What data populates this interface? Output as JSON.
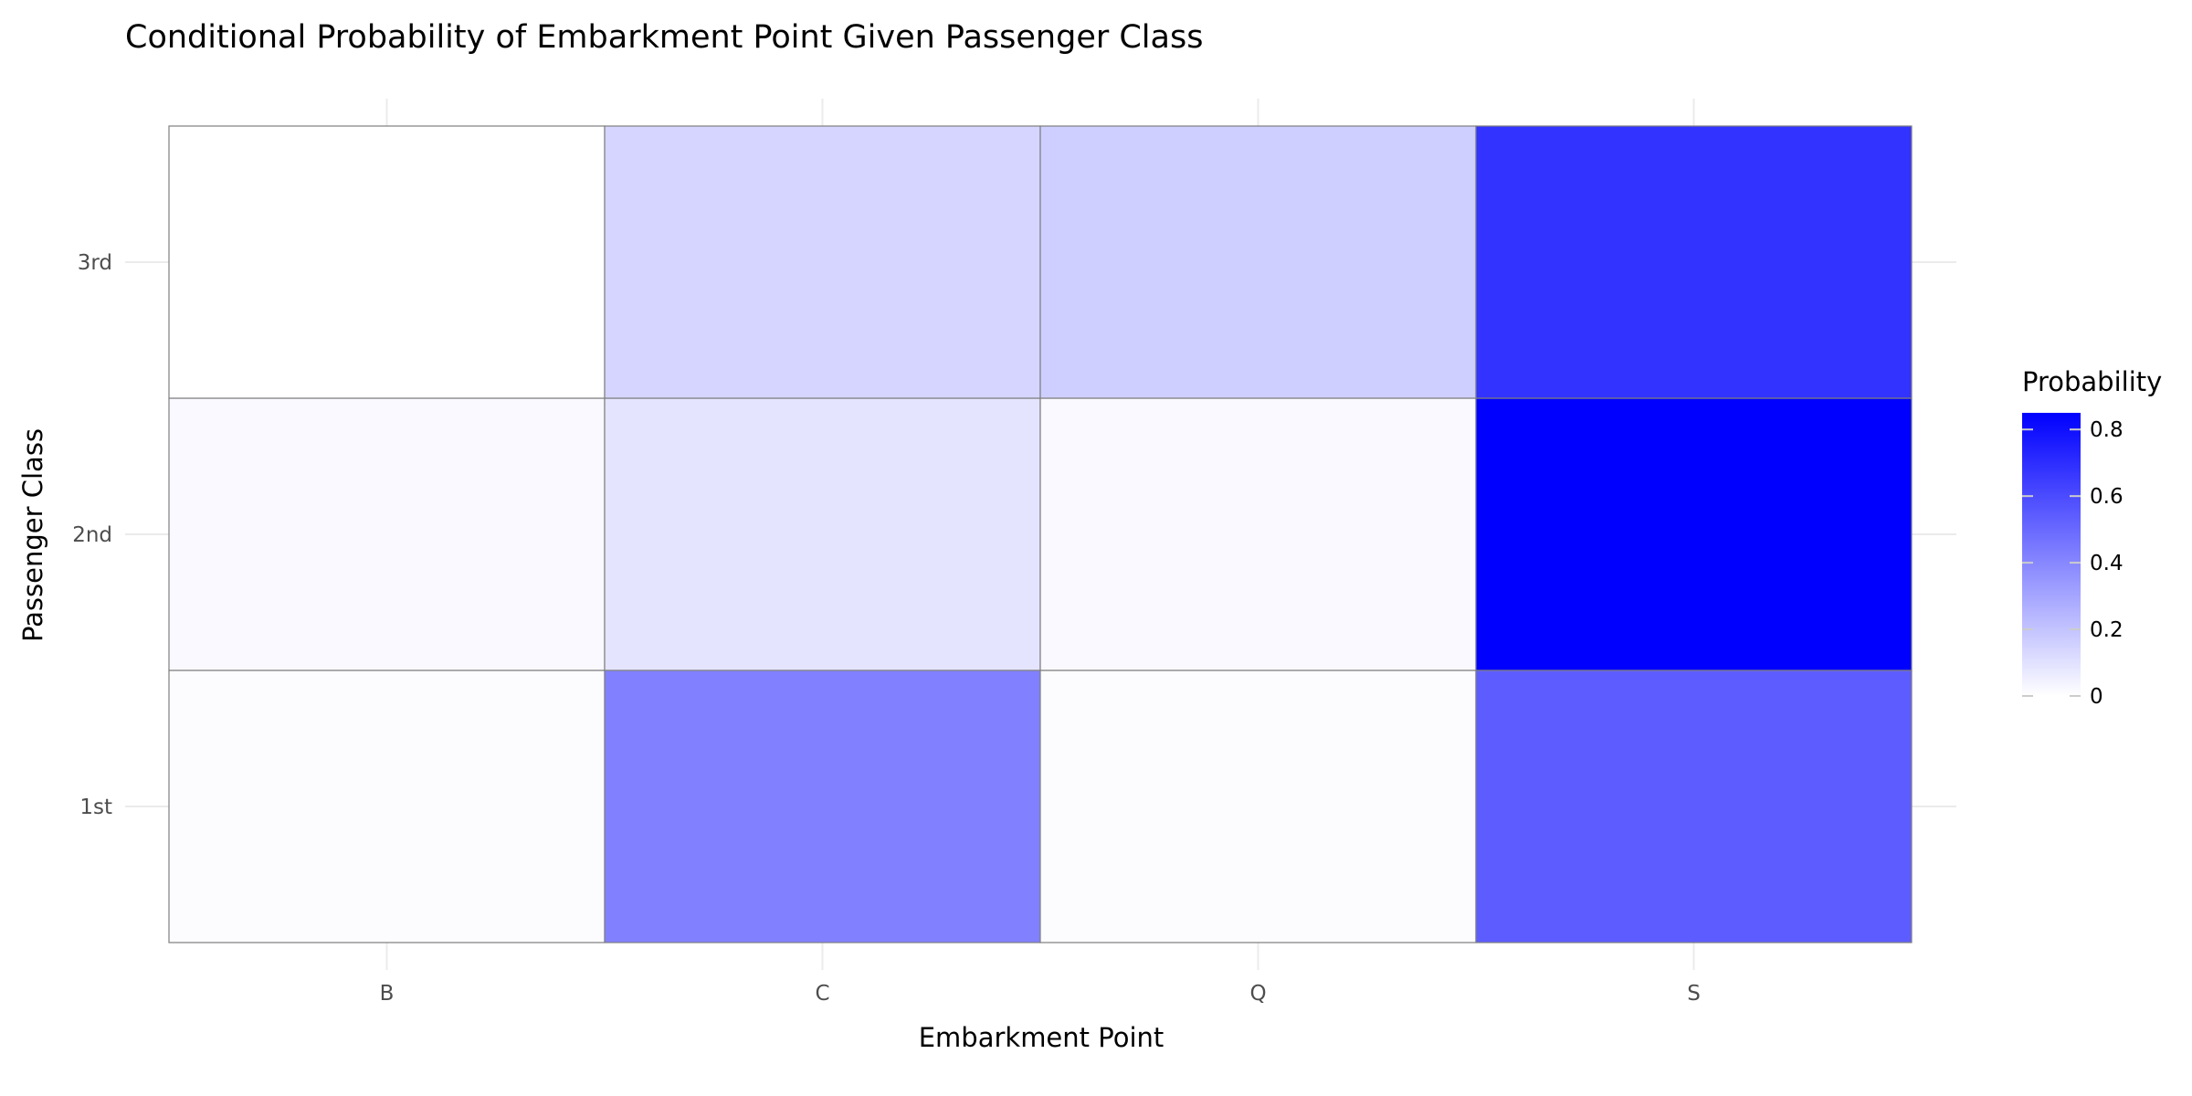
{
  "chart_data": {
    "type": "heatmap",
    "title": "Conditional Probability of Embarkment Point Given Passenger Class",
    "xlabel": "Embarkment Point",
    "ylabel": "Passenger Class",
    "x_categories": [
      "B",
      "C",
      "Q",
      "S"
    ],
    "y_categories": [
      "1st",
      "2nd",
      "3rd"
    ],
    "cells": [
      {
        "x": "B",
        "y": "1st",
        "value": 0.01
      },
      {
        "x": "C",
        "y": "1st",
        "value": 0.42
      },
      {
        "x": "Q",
        "y": "1st",
        "value": 0.01
      },
      {
        "x": "S",
        "y": "1st",
        "value": 0.54
      },
      {
        "x": "B",
        "y": "2nd",
        "value": 0.02
      },
      {
        "x": "C",
        "y": "2nd",
        "value": 0.09
      },
      {
        "x": "Q",
        "y": "2nd",
        "value": 0.02
      },
      {
        "x": "S",
        "y": "2nd",
        "value": 0.85
      },
      {
        "x": "B",
        "y": "3rd",
        "value": 0.0
      },
      {
        "x": "C",
        "y": "3rd",
        "value": 0.14
      },
      {
        "x": "Q",
        "y": "3rd",
        "value": 0.16
      },
      {
        "x": "S",
        "y": "3rd",
        "value": 0.68
      }
    ],
    "legend": {
      "title": "Probability",
      "ticks": [
        0,
        0.2,
        0.4,
        0.6,
        0.8
      ],
      "tick_labels": [
        "0",
        "0.2",
        "0.4",
        "0.6",
        "0.8"
      ],
      "range": [
        0,
        0.85
      ],
      "low_color": "#ffffff",
      "high_color": "#0000ff",
      "placement": "right"
    },
    "grid": true,
    "cell_border_color": "#7f7f7f"
  }
}
